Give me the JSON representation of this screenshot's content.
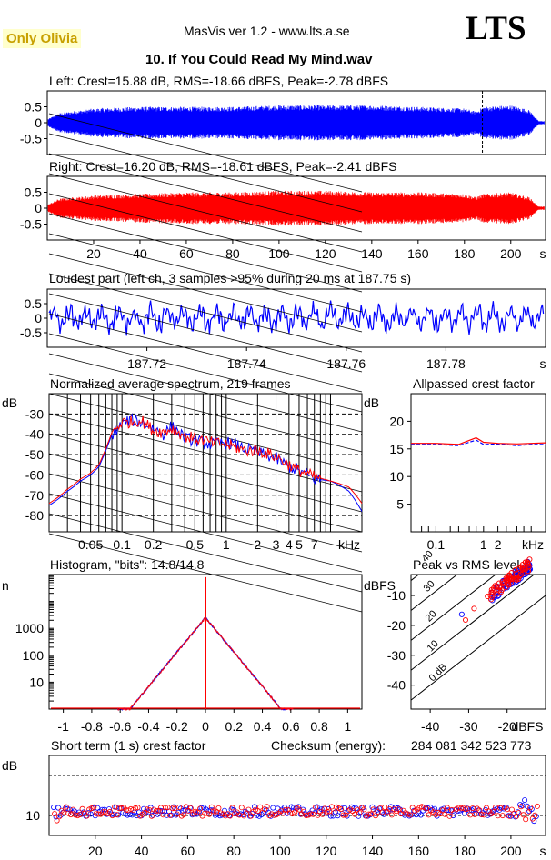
{
  "header": {
    "badge": "Only Olivia",
    "app_title": "MasVis ver 1.2 - www.lts.a.se",
    "logo": "LTS",
    "file_title": "10. If You Could Read My Mind.wav"
  },
  "colors": {
    "left": "#0000ff",
    "right": "#ff0000",
    "badge_bg": "#ffffcc",
    "badge_text": "#c8a000",
    "grid": "#000000"
  },
  "chart_data": [
    {
      "type": "line",
      "id": "left_waveform",
      "title": "Left: Crest=15.88 dB, RMS=-18.66 dBFS, Peak=-2.78 dBFS",
      "yticks": [
        "0.5",
        "0",
        "-0.5"
      ],
      "ylim": [
        -1,
        1
      ],
      "xlim": [
        0,
        215
      ],
      "marker_x": 187.75,
      "envelope_x": [
        0,
        5,
        20,
        40,
        60,
        80,
        100,
        120,
        140,
        160,
        180,
        185,
        188,
        200,
        208,
        212
      ],
      "envelope_amp": [
        0.1,
        0.3,
        0.45,
        0.5,
        0.5,
        0.5,
        0.55,
        0.55,
        0.55,
        0.5,
        0.45,
        0.35,
        0.5,
        0.55,
        0.4,
        0.05
      ]
    },
    {
      "type": "line",
      "id": "right_waveform",
      "title": "Right: Crest=16.20 dB, RMS=-18.61 dBFS, Peak=-2.41 dBFS",
      "yticks": [
        "0.5",
        "0",
        "-0.5"
      ],
      "ylim": [
        -1,
        1
      ],
      "xlim": [
        0,
        215
      ],
      "xticks": [
        "20",
        "40",
        "60",
        "80",
        "100",
        "120",
        "140",
        "160",
        "180",
        "200"
      ],
      "xtick_values": [
        20,
        40,
        60,
        80,
        100,
        120,
        140,
        160,
        180,
        200
      ],
      "x_unit": "s",
      "envelope_x": [
        0,
        5,
        20,
        40,
        60,
        80,
        100,
        120,
        140,
        160,
        180,
        185,
        188,
        200,
        208,
        212
      ],
      "envelope_amp": [
        0.1,
        0.3,
        0.4,
        0.45,
        0.5,
        0.5,
        0.55,
        0.55,
        0.5,
        0.5,
        0.45,
        0.35,
        0.45,
        0.5,
        0.35,
        0.05
      ]
    },
    {
      "type": "line",
      "id": "loudest_part",
      "title": "Loudest part (left  ch, 3 samples >95% during 20 ms at 187.75 s)",
      "yticks": [
        "0.5",
        "0",
        "-0.5"
      ],
      "ylim": [
        -1,
        1
      ],
      "xlim": [
        187.7,
        187.8
      ],
      "xticks": [
        "187.72",
        "187.74",
        "187.76",
        "187.78"
      ],
      "xtick_values": [
        187.72,
        187.74,
        187.76,
        187.78
      ],
      "x_unit": "s"
    },
    {
      "type": "line",
      "id": "spectrum",
      "title": "Normalized average spectrum, 219 frames",
      "ylabel": "dB",
      "yticks": [
        "-30",
        "-40",
        "-50",
        "-60",
        "-70",
        "-80"
      ],
      "ytick_values": [
        -30,
        -40,
        -50,
        -60,
        -70,
        -80
      ],
      "ylim": [
        -88,
        -20
      ],
      "xlim": [
        0.02,
        20
      ],
      "xscale": "log",
      "xticks": [
        "0.05",
        "0.1",
        "0.2",
        "0.5",
        "1",
        "2",
        "3",
        "4",
        "5",
        "7"
      ],
      "xtick_values": [
        0.05,
        0.1,
        0.2,
        0.5,
        1,
        2,
        3,
        4,
        5,
        7
      ],
      "x_unit": "kHz",
      "series": [
        {
          "x": [
            0.02,
            0.03,
            0.04,
            0.05,
            0.06,
            0.07,
            0.08,
            0.1,
            0.12,
            0.15,
            0.2,
            0.25,
            0.3,
            0.4,
            0.5,
            0.7,
            1,
            1.5,
            2,
            3,
            4,
            5,
            7,
            10,
            15,
            20
          ],
          "y": [
            -75,
            -68,
            -63,
            -60,
            -56,
            -48,
            -40,
            -35,
            -33,
            -34,
            -37,
            -40,
            -36,
            -42,
            -43,
            -45,
            -44,
            -47,
            -49,
            -52,
            -56,
            -58,
            -62,
            -63,
            -68,
            -78
          ]
        },
        {
          "x": [
            0.02,
            0.03,
            0.04,
            0.05,
            0.06,
            0.07,
            0.08,
            0.1,
            0.12,
            0.15,
            0.2,
            0.25,
            0.3,
            0.4,
            0.5,
            0.7,
            1,
            1.5,
            2,
            3,
            4,
            5,
            7,
            10,
            15,
            20
          ],
          "y": [
            -74,
            -67,
            -62,
            -59,
            -55,
            -47,
            -39,
            -34,
            -34,
            -33,
            -38,
            -39,
            -37,
            -41,
            -42,
            -44,
            -45,
            -48,
            -48,
            -51,
            -55,
            -58,
            -61,
            -63,
            -66,
            -74
          ]
        }
      ]
    },
    {
      "type": "line",
      "id": "allpassed_crest",
      "title": "Allpassed crest factor",
      "ylabel": "dB",
      "yticks": [
        "20",
        "15",
        "10",
        "5"
      ],
      "ytick_values": [
        20,
        15,
        10,
        5
      ],
      "ylim": [
        0,
        25
      ],
      "xlim": [
        0.03,
        20
      ],
      "xscale": "log",
      "xticks": [
        "0.1",
        "1",
        "2",
        "kHz"
      ],
      "xtick_values": [
        0.1,
        1,
        2
      ],
      "series": [
        {
          "x": [
            0.03,
            0.1,
            0.3,
            0.7,
            1,
            2,
            5,
            10,
            20
          ],
          "y": [
            15.8,
            15.8,
            15.6,
            16.6,
            15.8,
            15.9,
            15.6,
            15.8,
            15.8
          ]
        },
        {
          "x": [
            0.03,
            0.1,
            0.3,
            0.7,
            1,
            2,
            5,
            10,
            20
          ],
          "y": [
            16.0,
            16.0,
            15.8,
            17.0,
            16.2,
            16.0,
            15.9,
            16.0,
            16.1
          ]
        }
      ]
    },
    {
      "type": "line",
      "id": "histogram",
      "title": "Histogram, \"bits\": 14.8/14.8",
      "ylabel": "n",
      "yscale": "log",
      "yticks": [
        "1000",
        "100",
        "10"
      ],
      "ytick_values": [
        1000,
        100,
        10
      ],
      "ylim": [
        1,
        100000
      ],
      "xlim": [
        -1.1,
        1.1
      ],
      "xticks": [
        "-1",
        "-0.8",
        "-0.6",
        "-0.4",
        "-0.2",
        "0",
        "0.2",
        "0.4",
        "0.6",
        "0.8",
        "1"
      ],
      "xtick_values": [
        -1,
        -0.8,
        -0.6,
        -0.4,
        -0.2,
        0,
        0.2,
        0.4,
        0.6,
        0.8,
        1
      ],
      "peak_count": 2500,
      "zero_bin_count": 80000
    },
    {
      "type": "scatter",
      "id": "peak_vs_rms",
      "title": "Peak vs RMS level",
      "ylabel": "dBFS",
      "xlabel": "dBFS",
      "yticks": [
        "-10",
        "-20",
        "-30",
        "-40"
      ],
      "ytick_values": [
        -10,
        -20,
        -30,
        -40
      ],
      "xticks": [
        "-40",
        "-30",
        "-20"
      ],
      "xtick_values": [
        -40,
        -30,
        -20
      ],
      "xlim": [
        -45,
        -10
      ],
      "ylim": [
        -48,
        -3
      ],
      "diagonal_labels": [
        "40",
        "30",
        "20",
        "10",
        "0 dB"
      ],
      "diagonal_offsets": [
        40,
        30,
        20,
        10,
        0
      ]
    },
    {
      "type": "scatter",
      "id": "short_term_crest",
      "title": "Short term (1 s) crest factor",
      "checksum_label": "Checksum (energy):",
      "checksum": "284 081 342 523 773",
      "ylabel": "dB",
      "yticks": [
        "10"
      ],
      "ytick_values": [
        10
      ],
      "ylim": [
        5,
        25
      ],
      "xlim": [
        0,
        215
      ],
      "xticks": [
        "20",
        "40",
        "60",
        "80",
        "100",
        "120",
        "140",
        "160",
        "180",
        "200"
      ],
      "xtick_values": [
        20,
        40,
        60,
        80,
        100,
        120,
        140,
        160,
        180,
        200
      ],
      "x_unit": "s",
      "dashed_levels": [
        10,
        20
      ]
    }
  ]
}
